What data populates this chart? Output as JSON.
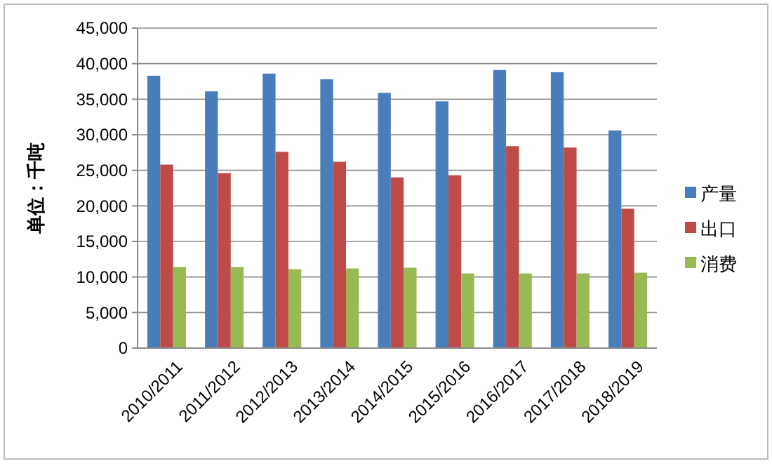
{
  "chart_data": {
    "type": "bar",
    "ylabel": "单位：千吨",
    "categories": [
      "2010/2011",
      "2011/2012",
      "2012/2013",
      "2013/2014",
      "2014/2015",
      "2015/2016",
      "2016/2017",
      "2017/2018",
      "2018/2019"
    ],
    "series": [
      {
        "name": "产量",
        "color": "#4a7ebb",
        "values": [
          38300,
          36100,
          38600,
          37800,
          35900,
          34700,
          39100,
          38800,
          30600
        ]
      },
      {
        "name": "出口",
        "color": "#be4b48",
        "values": [
          25800,
          24600,
          27600,
          26200,
          24000,
          24300,
          28400,
          28200,
          19600
        ]
      },
      {
        "name": "消费",
        "color": "#98b954",
        "values": [
          11400,
          11400,
          11100,
          11200,
          11300,
          10500,
          10500,
          10500,
          10600
        ]
      }
    ],
    "ylim": [
      0,
      45000
    ],
    "yticks": [
      {
        "value": 0,
        "label": "0"
      },
      {
        "value": 5000,
        "label": "5,000"
      },
      {
        "value": 10000,
        "label": "10,000"
      },
      {
        "value": 15000,
        "label": "15,000"
      },
      {
        "value": 20000,
        "label": "20,000"
      },
      {
        "value": 25000,
        "label": "25,000"
      },
      {
        "value": 30000,
        "label": "30,000"
      },
      {
        "value": 35000,
        "label": "35,000"
      },
      {
        "value": 40000,
        "label": "40,000"
      },
      {
        "value": 45000,
        "label": "45,000"
      }
    ],
    "grid": "y",
    "legend": "right"
  }
}
